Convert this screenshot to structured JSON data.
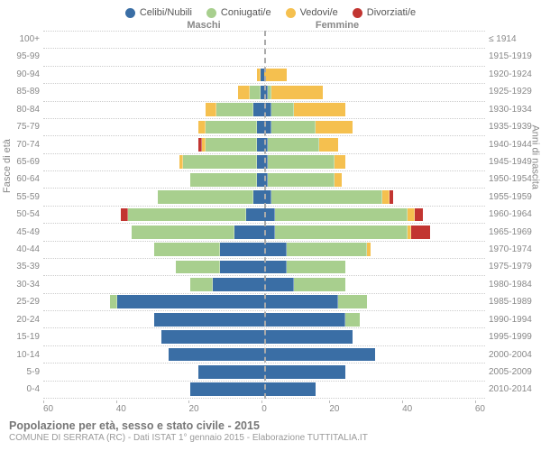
{
  "type": "population-pyramid",
  "legend": [
    {
      "label": "Celibi/Nubili",
      "color": "#3a6ea5"
    },
    {
      "label": "Coniugati/e",
      "color": "#a8cf8e"
    },
    {
      "label": "Vedovi/e",
      "color": "#f5c04f"
    },
    {
      "label": "Divorziati/e",
      "color": "#c23531"
    }
  ],
  "gender_labels": {
    "left": "Maschi",
    "right": "Femmine"
  },
  "axis_titles": {
    "left": "Fasce di età",
    "right": "Anni di nascita"
  },
  "x_max": 60,
  "x_ticks": [
    "60",
    "40",
    "20",
    "0",
    "20",
    "40",
    "60"
  ],
  "colors": {
    "celibi": "#3a6ea5",
    "coniugati": "#a8cf8e",
    "vedovi": "#f5c04f",
    "divorziati": "#c23531",
    "grid": "#cccccc",
    "text": "#888888",
    "background": "#ffffff"
  },
  "typography": {
    "tick_fontsize": 10,
    "label_fontsize": 11,
    "title_fontsize": 12.5
  },
  "footer": {
    "title": "Popolazione per età, sesso e stato civile - 2015",
    "subtitle": "COMUNE DI SERRATA (RC) - Dati ISTAT 1° gennaio 2015 - Elaborazione TUTTITALIA.IT"
  },
  "rows": [
    {
      "age": "100+",
      "birth": "≤ 1914",
      "m": {
        "c": 0,
        "g": 0,
        "v": 0,
        "d": 0
      },
      "f": {
        "c": 0,
        "g": 0,
        "v": 0,
        "d": 0
      }
    },
    {
      "age": "95-99",
      "birth": "1915-1919",
      "m": {
        "c": 0,
        "g": 0,
        "v": 0,
        "d": 0
      },
      "f": {
        "c": 0,
        "g": 0,
        "v": 0,
        "d": 0
      }
    },
    {
      "age": "90-94",
      "birth": "1920-1924",
      "m": {
        "c": 1,
        "g": 0,
        "v": 1,
        "d": 0
      },
      "f": {
        "c": 0,
        "g": 0,
        "v": 6,
        "d": 0
      }
    },
    {
      "age": "85-89",
      "birth": "1925-1929",
      "m": {
        "c": 1,
        "g": 3,
        "v": 3,
        "d": 0
      },
      "f": {
        "c": 1,
        "g": 1,
        "v": 14,
        "d": 0
      }
    },
    {
      "age": "80-84",
      "birth": "1930-1934",
      "m": {
        "c": 3,
        "g": 10,
        "v": 3,
        "d": 0
      },
      "f": {
        "c": 2,
        "g": 6,
        "v": 14,
        "d": 0
      }
    },
    {
      "age": "75-79",
      "birth": "1935-1939",
      "m": {
        "c": 2,
        "g": 14,
        "v": 2,
        "d": 0
      },
      "f": {
        "c": 2,
        "g": 12,
        "v": 10,
        "d": 0
      }
    },
    {
      "age": "70-74",
      "birth": "1940-1944",
      "m": {
        "c": 2,
        "g": 14,
        "v": 1,
        "d": 1
      },
      "f": {
        "c": 1,
        "g": 14,
        "v": 5,
        "d": 0
      }
    },
    {
      "age": "65-69",
      "birth": "1945-1949",
      "m": {
        "c": 2,
        "g": 20,
        "v": 1,
        "d": 0
      },
      "f": {
        "c": 1,
        "g": 18,
        "v": 3,
        "d": 0
      }
    },
    {
      "age": "60-64",
      "birth": "1950-1954",
      "m": {
        "c": 2,
        "g": 18,
        "v": 0,
        "d": 0
      },
      "f": {
        "c": 1,
        "g": 18,
        "v": 2,
        "d": 0
      }
    },
    {
      "age": "55-59",
      "birth": "1955-1959",
      "m": {
        "c": 3,
        "g": 26,
        "v": 0,
        "d": 0
      },
      "f": {
        "c": 2,
        "g": 30,
        "v": 2,
        "d": 1
      }
    },
    {
      "age": "50-54",
      "birth": "1960-1964",
      "m": {
        "c": 5,
        "g": 32,
        "v": 0,
        "d": 2
      },
      "f": {
        "c": 3,
        "g": 36,
        "v": 2,
        "d": 2
      }
    },
    {
      "age": "45-49",
      "birth": "1965-1969",
      "m": {
        "c": 8,
        "g": 28,
        "v": 0,
        "d": 0
      },
      "f": {
        "c": 3,
        "g": 36,
        "v": 1,
        "d": 5
      }
    },
    {
      "age": "40-44",
      "birth": "1970-1974",
      "m": {
        "c": 12,
        "g": 18,
        "v": 0,
        "d": 0
      },
      "f": {
        "c": 6,
        "g": 22,
        "v": 1,
        "d": 0
      }
    },
    {
      "age": "35-39",
      "birth": "1975-1979",
      "m": {
        "c": 12,
        "g": 12,
        "v": 0,
        "d": 0
      },
      "f": {
        "c": 6,
        "g": 16,
        "v": 0,
        "d": 0
      }
    },
    {
      "age": "30-34",
      "birth": "1980-1984",
      "m": {
        "c": 14,
        "g": 6,
        "v": 0,
        "d": 0
      },
      "f": {
        "c": 8,
        "g": 14,
        "v": 0,
        "d": 0
      }
    },
    {
      "age": "25-29",
      "birth": "1985-1989",
      "m": {
        "c": 40,
        "g": 2,
        "v": 0,
        "d": 0
      },
      "f": {
        "c": 20,
        "g": 8,
        "v": 0,
        "d": 0
      }
    },
    {
      "age": "20-24",
      "birth": "1990-1994",
      "m": {
        "c": 30,
        "g": 0,
        "v": 0,
        "d": 0
      },
      "f": {
        "c": 22,
        "g": 4,
        "v": 0,
        "d": 0
      }
    },
    {
      "age": "15-19",
      "birth": "1995-1999",
      "m": {
        "c": 28,
        "g": 0,
        "v": 0,
        "d": 0
      },
      "f": {
        "c": 24,
        "g": 0,
        "v": 0,
        "d": 0
      }
    },
    {
      "age": "10-14",
      "birth": "2000-2004",
      "m": {
        "c": 26,
        "g": 0,
        "v": 0,
        "d": 0
      },
      "f": {
        "c": 30,
        "g": 0,
        "v": 0,
        "d": 0
      }
    },
    {
      "age": "5-9",
      "birth": "2005-2009",
      "m": {
        "c": 18,
        "g": 0,
        "v": 0,
        "d": 0
      },
      "f": {
        "c": 22,
        "g": 0,
        "v": 0,
        "d": 0
      }
    },
    {
      "age": "0-4",
      "birth": "2010-2014",
      "m": {
        "c": 20,
        "g": 0,
        "v": 0,
        "d": 0
      },
      "f": {
        "c": 14,
        "g": 0,
        "v": 0,
        "d": 0
      }
    }
  ]
}
